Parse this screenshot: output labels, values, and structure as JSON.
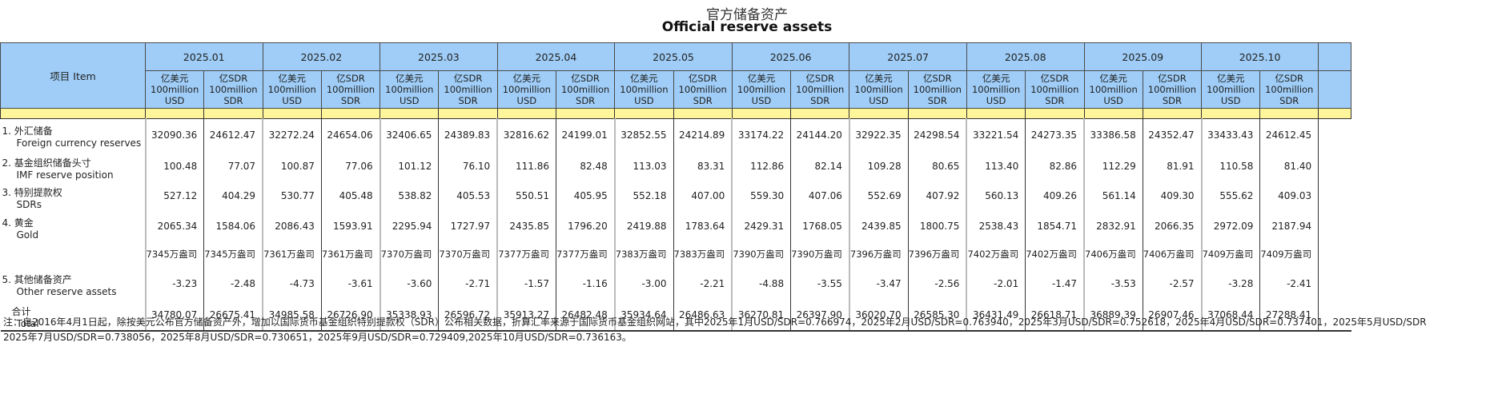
{
  "header": {
    "title_cn": "官方储备资产",
    "title_en": "Official reserve assets"
  },
  "table": {
    "item_header": "项目 Item",
    "months": [
      "2025.01",
      "2025.02",
      "2025.03",
      "2025.04",
      "2025.05",
      "2025.06",
      "2025.07",
      "2025.08",
      "2025.09",
      "2025.10"
    ],
    "unit_usd": [
      "亿美元",
      "100million",
      "USD"
    ],
    "unit_sdr": [
      "亿SDR",
      "100million",
      "SDR"
    ],
    "rows": [
      {
        "label_cn": "1.  外汇储备",
        "label_en": "Foreign currency reserves",
        "values": [
          "32090.36",
          "24612.47",
          "32272.24",
          "24654.06",
          "32406.65",
          "24389.83",
          "32816.62",
          "24199.01",
          "32852.55",
          "24214.89",
          "33174.22",
          "24144.20",
          "32922.35",
          "24298.54",
          "33221.54",
          "24273.35",
          "33386.58",
          "24352.47",
          "33433.43",
          "24612.45"
        ]
      },
      {
        "label_cn": "2.  基金组织储备头寸",
        "label_en": "IMF reserve position",
        "values": [
          "100.48",
          "77.07",
          "100.87",
          "77.06",
          "101.12",
          "76.10",
          "111.86",
          "82.48",
          "113.03",
          "83.31",
          "112.86",
          "82.14",
          "109.28",
          "80.65",
          "113.40",
          "82.86",
          "112.29",
          "81.91",
          "110.58",
          "81.40"
        ]
      },
      {
        "label_cn": "3.  特别提款权",
        "label_en": "SDRs",
        "values": [
          "527.12",
          "404.29",
          "530.77",
          "405.48",
          "538.82",
          "405.53",
          "550.51",
          "405.95",
          "552.18",
          "407.00",
          "559.30",
          "407.06",
          "552.69",
          "407.92",
          "560.13",
          "409.26",
          "561.14",
          "409.30",
          "555.62",
          "409.03"
        ]
      },
      {
        "label_cn": "4.  黄金",
        "label_en": "Gold",
        "values": [
          "2065.34",
          "1584.06",
          "2086.43",
          "1593.91",
          "2295.94",
          "1727.97",
          "2435.85",
          "1796.20",
          "2419.88",
          "1783.64",
          "2429.31",
          "1768.05",
          "2439.85",
          "1800.75",
          "2538.43",
          "1854.71",
          "2832.91",
          "2066.35",
          "2972.09",
          "2187.94"
        ]
      },
      {
        "label_cn": "",
        "label_en": "",
        "values": [
          "7345万盎司",
          "7345万盎司",
          "7361万盎司",
          "7361万盎司",
          "7370万盎司",
          "7370万盎司",
          "7377万盎司",
          "7377万盎司",
          "7383万盎司",
          "7383万盎司",
          "7390万盎司",
          "7390万盎司",
          "7396万盎司",
          "7396万盎司",
          "7402万盎司",
          "7402万盎司",
          "7406万盎司",
          "7406万盎司",
          "7409万盎司",
          "7409万盎司"
        ]
      },
      {
        "label_cn": "5.  其他储备资产",
        "label_en": "Other reserve assets",
        "values": [
          "-3.23",
          "-2.48",
          "-4.73",
          "-3.61",
          "-3.60",
          "-2.71",
          "-1.57",
          "-1.16",
          "-3.00",
          "-2.21",
          "-4.88",
          "-3.55",
          "-3.47",
          "-2.56",
          "-2.01",
          "-1.47",
          "-3.53",
          "-2.57",
          "-3.28",
          "-2.41"
        ]
      },
      {
        "label_cn": "合计",
        "label_en": "Total",
        "values": [
          "34780.07",
          "26675.41",
          "34985.58",
          "26726.90",
          "35338.93",
          "26596.72",
          "35913.27",
          "26482.48",
          "35934.64",
          "26486.63",
          "36270.81",
          "26397.90",
          "36020.70",
          "26585.30",
          "36431.49",
          "26618.71",
          "36889.39",
          "26907.46",
          "37068.44",
          "27288.41"
        ]
      }
    ]
  },
  "note": {
    "line1": "  注：自2016年4月1日起，除按美元公布官方储备资产外，增加以国际货币基金组织特别提款权（SDR）公布相关数据，折算汇率来源于国际货币基金组织网站，其中2025年1月USD/SDR=0.766974，2025年2月USD/SDR=0.763940，2025年3月USD/SDR=0.752618，2025年4月USD/SDR=0.737401，2025年5月USD/SDR",
    "line2": "2025年7月USD/SDR=0.738056，2025年8月USD/SDR=0.730651，2025年9月USD/SDR=0.729409,2025年10月USD/SDR=0.736163。"
  },
  "colors": {
    "header_bg": "#9fcdf7",
    "spacer_bg": "#fff59a",
    "border": "#333333"
  }
}
